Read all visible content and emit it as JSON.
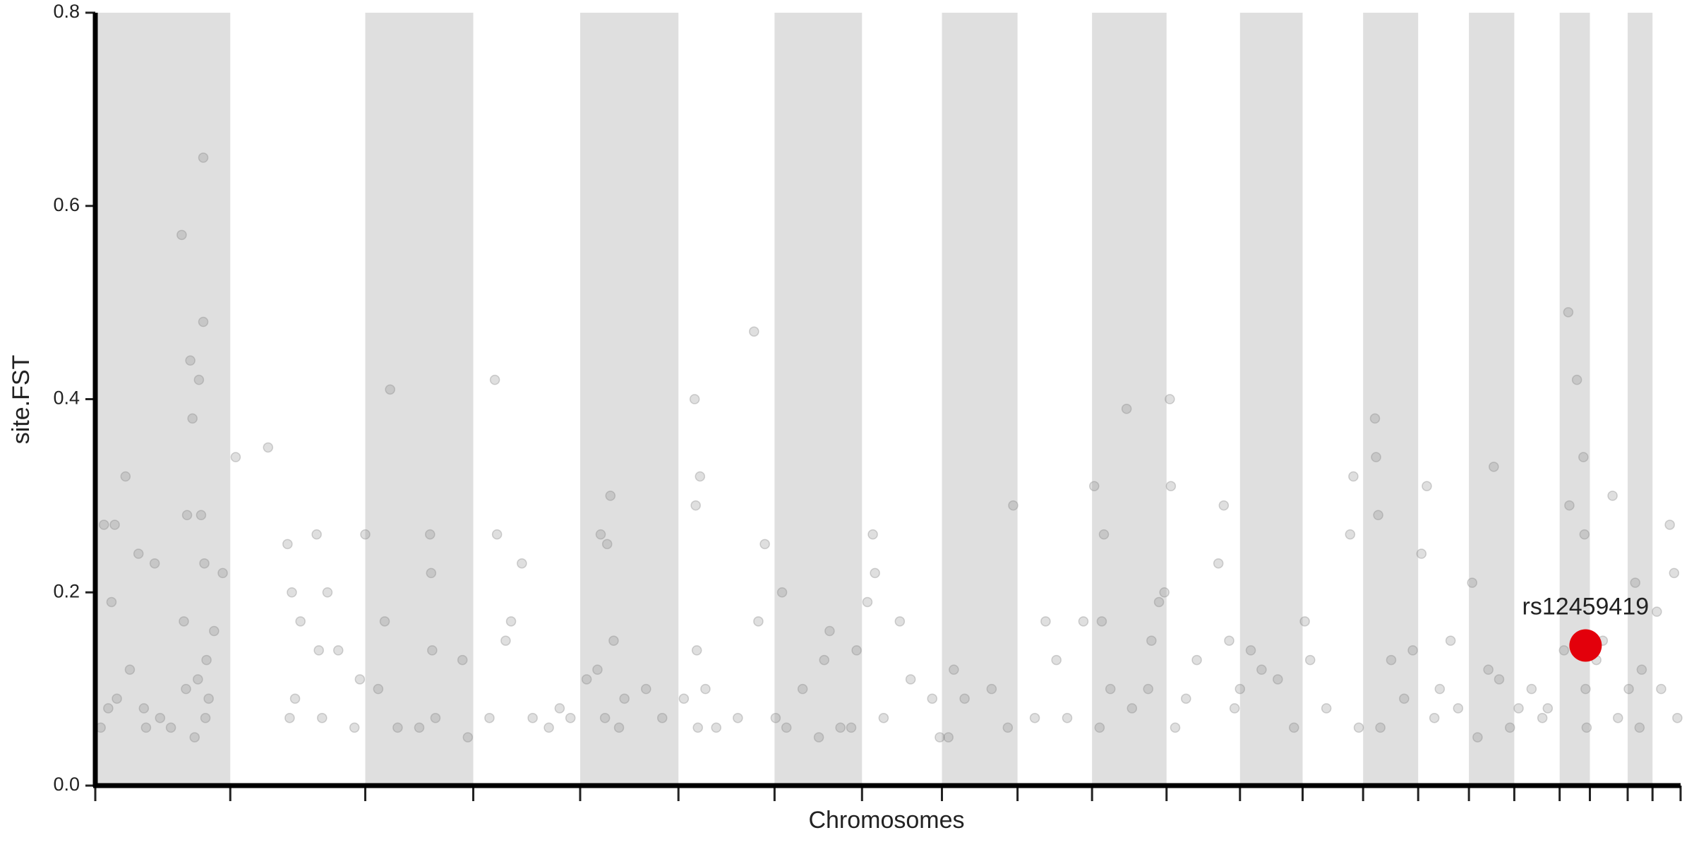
{
  "chart_data": {
    "type": "scatter",
    "y_label": "site.FST",
    "x_label": "Chromosomes",
    "xlim": [
      0,
      1468
    ],
    "ylim": [
      0,
      0.8
    ],
    "xticks": [
      0,
      125,
      250,
      350,
      449,
      540,
      629,
      710,
      784,
      854,
      923,
      992,
      1060,
      1118,
      1174,
      1225,
      1272,
      1314,
      1356,
      1384,
      1419,
      1442,
      1468
    ],
    "yticks": [
      {
        "value": 0,
        "label": "0.0"
      },
      0.2,
      0.4,
      0.6,
      0.8
    ],
    "band_color": "#dfdfdf",
    "color": "#808080",
    "x": [
      5,
      8,
      12,
      15,
      18,
      20,
      28,
      32,
      40,
      45,
      47,
      55,
      60,
      70,
      80,
      82,
      84,
      85,
      88,
      90,
      92,
      95,
      96,
      98,
      100,
      100,
      101,
      102,
      103,
      105,
      110,
      118,
      130,
      160,
      178,
      180,
      182,
      185,
      190,
      205,
      207,
      210,
      215,
      225,
      240,
      245,
      250,
      262,
      268,
      273,
      280,
      300,
      310,
      311,
      312,
      315,
      340,
      345,
      365,
      370,
      372,
      380,
      385,
      395,
      405,
      420,
      430,
      440,
      455,
      465,
      468,
      472,
      474,
      477,
      480,
      485,
      490,
      510,
      525,
      545,
      555,
      556,
      557,
      558,
      560,
      565,
      575,
      595,
      610,
      614,
      620,
      630,
      636,
      640,
      655,
      670,
      675,
      680,
      690,
      700,
      705,
      715,
      720,
      722,
      730,
      745,
      755,
      775,
      782,
      790,
      795,
      805,
      830,
      845,
      850,
      870,
      880,
      890,
      900,
      915,
      925,
      930,
      932,
      934,
      940,
      955,
      960,
      975,
      978,
      985,
      990,
      995,
      996,
      1000,
      1010,
      1020,
      1040,
      1045,
      1050,
      1055,
      1060,
      1070,
      1080,
      1095,
      1110,
      1120,
      1125,
      1140,
      1162,
      1165,
      1170,
      1185,
      1186,
      1188,
      1190,
      1200,
      1212,
      1220,
      1228,
      1233,
      1240,
      1245,
      1255,
      1262,
      1275,
      1280,
      1290,
      1295,
      1300,
      1310,
      1318,
      1330,
      1340,
      1345,
      1360,
      1364,
      1365,
      1372,
      1378,
      1379,
      1380,
      1381,
      1390,
      1396,
      1405,
      1410,
      1420,
      1426,
      1430,
      1432,
      1446,
      1450,
      1458,
      1462,
      1465
    ],
    "values": [
      0.06,
      0.27,
      0.08,
      0.19,
      0.27,
      0.09,
      0.32,
      0.12,
      0.24,
      0.08,
      0.06,
      0.23,
      0.07,
      0.06,
      0.57,
      0.17,
      0.1,
      0.28,
      0.44,
      0.38,
      0.05,
      0.11,
      0.42,
      0.28,
      0.65,
      0.48,
      0.23,
      0.07,
      0.13,
      0.09,
      0.16,
      0.22,
      0.34,
      0.35,
      0.25,
      0.07,
      0.2,
      0.09,
      0.17,
      0.26,
      0.14,
      0.07,
      0.2,
      0.14,
      0.06,
      0.11,
      0.26,
      0.1,
      0.17,
      0.41,
      0.06,
      0.06,
      0.26,
      0.22,
      0.14,
      0.07,
      0.13,
      0.05,
      0.07,
      0.42,
      0.26,
      0.15,
      0.17,
      0.23,
      0.07,
      0.06,
      0.08,
      0.07,
      0.11,
      0.12,
      0.26,
      0.07,
      0.25,
      0.3,
      0.15,
      0.06,
      0.09,
      0.1,
      0.07,
      0.09,
      0.4,
      0.29,
      0.14,
      0.06,
      0.32,
      0.1,
      0.06,
      0.07,
      0.47,
      0.17,
      0.25,
      0.07,
      0.2,
      0.06,
      0.1,
      0.05,
      0.13,
      0.16,
      0.06,
      0.06,
      0.14,
      0.19,
      0.26,
      0.22,
      0.07,
      0.17,
      0.11,
      0.09,
      0.05,
      0.05,
      0.12,
      0.09,
      0.1,
      0.06,
      0.29,
      0.07,
      0.17,
      0.13,
      0.07,
      0.17,
      0.31,
      0.06,
      0.17,
      0.26,
      0.1,
      0.39,
      0.08,
      0.1,
      0.15,
      0.19,
      0.2,
      0.4,
      0.31,
      0.06,
      0.09,
      0.13,
      0.23,
      0.29,
      0.15,
      0.08,
      0.1,
      0.14,
      0.12,
      0.11,
      0.06,
      0.17,
      0.13,
      0.08,
      0.26,
      0.32,
      0.06,
      0.38,
      0.34,
      0.28,
      0.06,
      0.13,
      0.09,
      0.14,
      0.24,
      0.31,
      0.07,
      0.1,
      0.15,
      0.08,
      0.21,
      0.05,
      0.12,
      0.33,
      0.11,
      0.06,
      0.08,
      0.1,
      0.07,
      0.08,
      0.14,
      0.49,
      0.29,
      0.42,
      0.34,
      0.26,
      0.1,
      0.06,
      0.13,
      0.15,
      0.3,
      0.07,
      0.1,
      0.21,
      0.06,
      0.12,
      0.18,
      0.1,
      0.27,
      0.22,
      0.07
    ],
    "annotations": [
      {
        "x": 1380,
        "y": 0.145,
        "label": "rs12459419",
        "color": "#e3000b"
      }
    ]
  }
}
